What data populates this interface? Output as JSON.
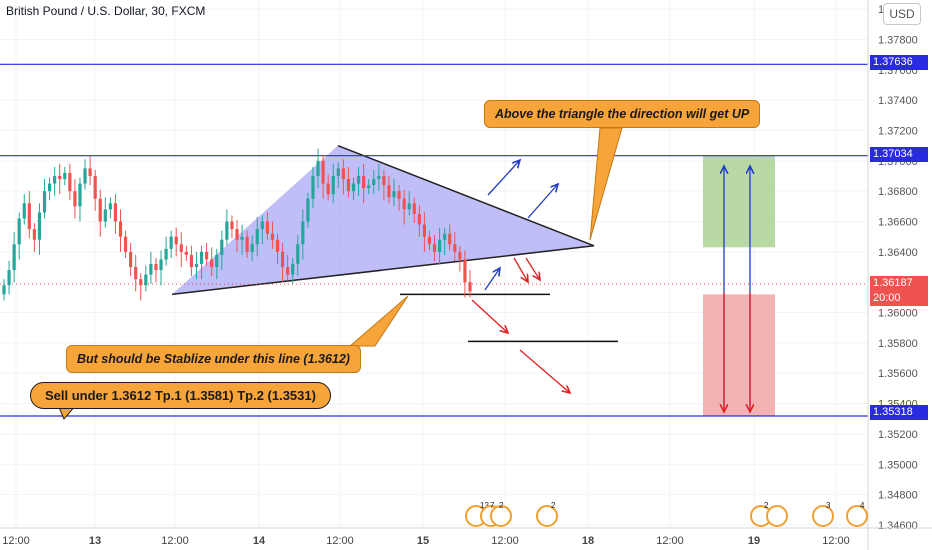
{
  "header": {
    "title": "British Pound / U.S. Dollar, 30, FXCM",
    "currency_button": "USD"
  },
  "price_tags": {
    "upper_line": "1.37636",
    "triangle_top_line": "1.37034",
    "current_price": "1.36187",
    "countdown": "20:00",
    "lower_line": "1.35318"
  },
  "annotations": {
    "top_callout": "Above the triangle the direction will get UP",
    "middle_callout": "But should be Stablize under this line (1.3612)",
    "bottom_callout": "Sell under 1.3612      Tp.1 (1.3581) Tp.2 (1.3531)"
  },
  "events": [
    {
      "id": "evt-uk-12",
      "count": "12"
    },
    {
      "id": "evt-7",
      "count": "7"
    },
    {
      "id": "evt-2a",
      "count": "2"
    },
    {
      "id": "evt-uk-2",
      "count": "2"
    },
    {
      "id": "evt-uk-2b",
      "count": "2"
    },
    {
      "id": "evt-us-3",
      "count": "3"
    },
    {
      "id": "evt-uk-4",
      "count": "4"
    }
  ],
  "colors": {
    "up_candle": "#26a69a",
    "down_candle": "#ef5350",
    "triangle_fill": "#aaa8f5",
    "horizontal_line": "#2a2ae0",
    "callout": "#f7a43b",
    "buy_zone": "#a8d08d",
    "sell_zone": "#f0a0a0",
    "arrow_up": "#1f3cc4",
    "arrow_down": "#e02020"
  },
  "chart_data": {
    "type": "candlestick",
    "symbol": "GBPUSD",
    "interval": "30",
    "y_axis": {
      "ticks": [
        "1.38000",
        "1.37800",
        "1.37600",
        "1.37400",
        "1.37200",
        "1.37000",
        "1.36800",
        "1.36600",
        "1.36400",
        "1.36200",
        "1.36000",
        "1.35800",
        "1.35600",
        "1.35400",
        "1.35200",
        "1.35000",
        "1.34800",
        "1.34600"
      ],
      "range": [
        1.3458,
        1.3806
      ]
    },
    "x_axis": {
      "ticks": [
        "12:00",
        "13",
        "12:00",
        "14",
        "12:00",
        "15",
        "12:00",
        "18",
        "12:00",
        "19",
        "12:00"
      ]
    },
    "levels": {
      "upper": 1.37636,
      "triangle_top": 1.37034,
      "current": 1.36187,
      "stabilize": 1.3612,
      "tp1": 1.3581,
      "lower": 1.35318
    },
    "triangle": [
      [
        1.3612,
        "13 12:00"
      ],
      [
        1.371,
        "14 12:00"
      ],
      [
        1.3644,
        "15 ~17:00"
      ]
    ],
    "close_approx_series": [
      1.3618,
      1.3628,
      1.3645,
      1.3662,
      1.3672,
      1.3655,
      1.3648,
      1.3666,
      1.368,
      1.3685,
      1.369,
      1.3688,
      1.3692,
      1.368,
      1.367,
      1.3685,
      1.3695,
      1.369,
      1.3675,
      1.366,
      1.3668,
      1.3672,
      1.366,
      1.365,
      1.364,
      1.363,
      1.3622,
      1.3618,
      1.3625,
      1.3632,
      1.3628,
      1.3635,
      1.3642,
      1.365,
      1.3645,
      1.364,
      1.3638,
      1.363,
      1.3632,
      1.364,
      1.3635,
      1.363,
      1.3638,
      1.3648,
      1.366,
      1.3655,
      1.3648,
      1.365,
      1.364,
      1.3645,
      1.3655,
      1.366,
      1.3652,
      1.3648,
      1.364,
      1.363,
      1.3625,
      1.3632,
      1.3645,
      1.366,
      1.3675,
      1.369,
      1.37,
      1.3685,
      1.3678,
      1.369,
      1.3695,
      1.3688,
      1.368,
      1.3685,
      1.369,
      1.3682,
      1.3684,
      1.3688,
      1.369,
      1.3684,
      1.3676,
      1.368,
      1.3675,
      1.3668,
      1.3672,
      1.3665,
      1.3658,
      1.365,
      1.3645,
      1.364,
      1.3648,
      1.3652,
      1.3645,
      1.364,
      1.3635,
      1.362,
      1.3614
    ]
  }
}
